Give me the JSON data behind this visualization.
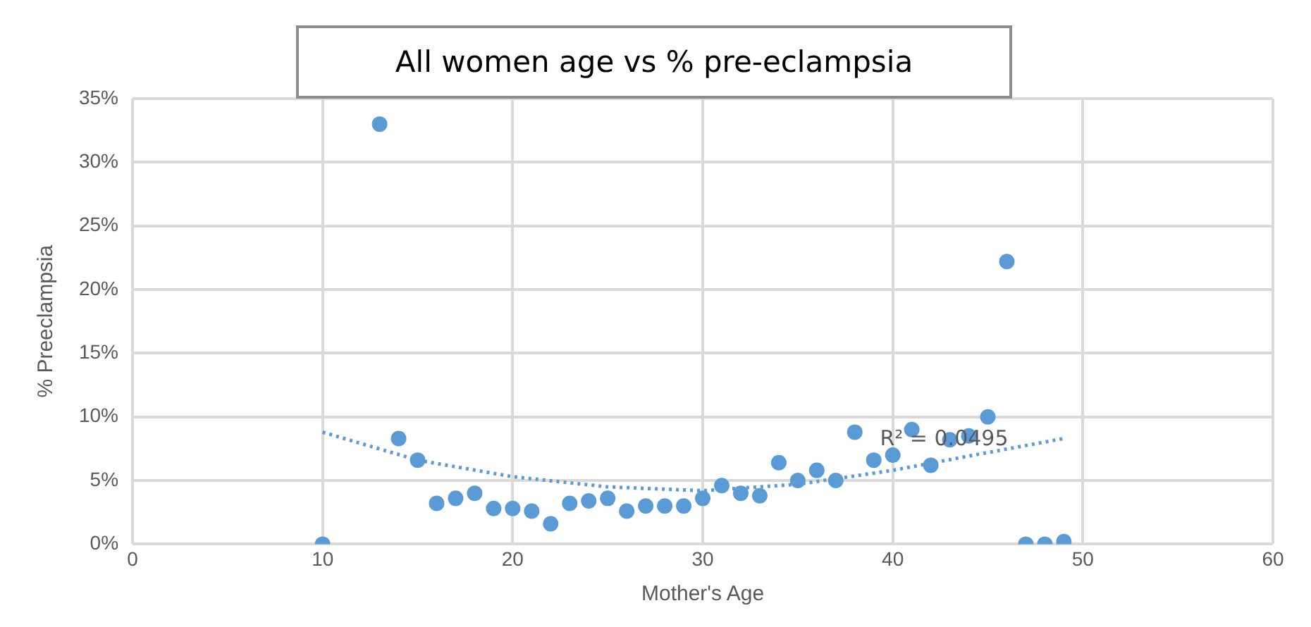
{
  "chart_data": {
    "type": "scatter",
    "title": "All women age vs % pre-eclampsia",
    "xlabel": "Mother's Age",
    "ylabel": "% Preeclampsia",
    "xlim": [
      0,
      60
    ],
    "xticks": [
      0,
      10,
      20,
      30,
      40,
      50,
      60
    ],
    "ylim": [
      0,
      35
    ],
    "yticks": [
      {
        "value": 0,
        "label": "0%"
      },
      {
        "value": 5,
        "label": "5%"
      },
      {
        "value": 10,
        "label": "10%"
      },
      {
        "value": 15,
        "label": "15%"
      },
      {
        "value": 20,
        "label": "20%"
      },
      {
        "value": 25,
        "label": "25%"
      },
      {
        "value": 30,
        "label": "30%"
      },
      {
        "value": 35,
        "label": "35%"
      }
    ],
    "grid": true,
    "legend": false,
    "marker": "circle",
    "series": [
      {
        "type": "scatter",
        "color": "#5b9bd5",
        "x": [
          10,
          13,
          14,
          15,
          16,
          17,
          18,
          19,
          20,
          21,
          22,
          23,
          24,
          25,
          26,
          27,
          28,
          29,
          30,
          31,
          32,
          33,
          34,
          35,
          36,
          37,
          38,
          39,
          40,
          41,
          42,
          43,
          44,
          45,
          46,
          47,
          48,
          49
        ],
        "values": [
          0,
          33.0,
          8.3,
          6.6,
          3.2,
          3.6,
          4.0,
          2.8,
          2.8,
          2.6,
          1.6,
          3.2,
          3.4,
          3.6,
          2.6,
          3.0,
          3.0,
          3.0,
          3.6,
          4.6,
          4.0,
          3.8,
          6.4,
          5.0,
          5.8,
          5.0,
          8.8,
          6.6,
          7.0,
          9.0,
          6.2,
          8.2,
          8.5,
          10.0,
          22.2,
          0,
          0,
          0.2
        ]
      },
      {
        "type": "line",
        "color": "#5b9bd5",
        "line_style": "dotted",
        "marker": "none",
        "x": [
          10,
          15,
          20,
          25,
          30,
          35,
          40,
          45,
          49
        ],
        "values": [
          8.8,
          6.6,
          5.3,
          4.5,
          4.2,
          4.7,
          5.8,
          7.2,
          8.3
        ]
      }
    ],
    "annotations": [
      {
        "text": "R² = 0.0495",
        "x": 42.7,
        "y": 8.2
      }
    ]
  }
}
